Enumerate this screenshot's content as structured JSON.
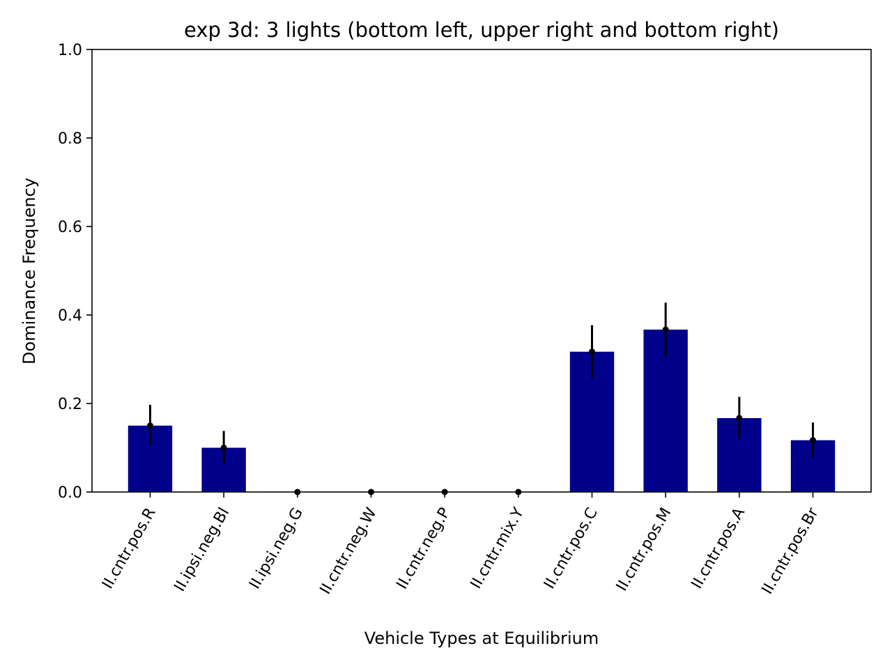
{
  "chart_data": {
    "type": "bar",
    "title": "exp 3d: 3 lights (bottom left, upper right and bottom right)",
    "xlabel": "Vehicle Types at Equilibrium",
    "ylabel": "Dominance Frequency",
    "ylim": [
      0,
      1.0
    ],
    "y_ticks": [
      "0.0",
      "0.2",
      "0.4",
      "0.6",
      "0.8",
      "1.0"
    ],
    "categories": [
      "II.cntr.pos.R",
      "II.ipsi.neg.Bl",
      "II.ipsi.neg.G",
      "II.cntr.neg.W",
      "II.cntr.neg.P",
      "II.cntr.mix.Y",
      "II.cntr.pos.C",
      "II.cntr.pos.M",
      "II.cntr.pos.A",
      "II.cntr.pos.Br"
    ],
    "values": [
      0.15,
      0.1,
      0.0,
      0.0,
      0.0,
      0.0,
      0.317,
      0.367,
      0.167,
      0.117
    ],
    "error_low": [
      0.105,
      0.062,
      0.0,
      0.0,
      0.0,
      0.0,
      0.258,
      0.306,
      0.119,
      0.077
    ],
    "error_high": [
      0.197,
      0.138,
      0.0,
      0.0,
      0.0,
      0.0,
      0.377,
      0.428,
      0.215,
      0.157
    ],
    "grid": false,
    "colors": {
      "bar": "#00008b",
      "error": "#000000",
      "axes": "#000000"
    }
  }
}
